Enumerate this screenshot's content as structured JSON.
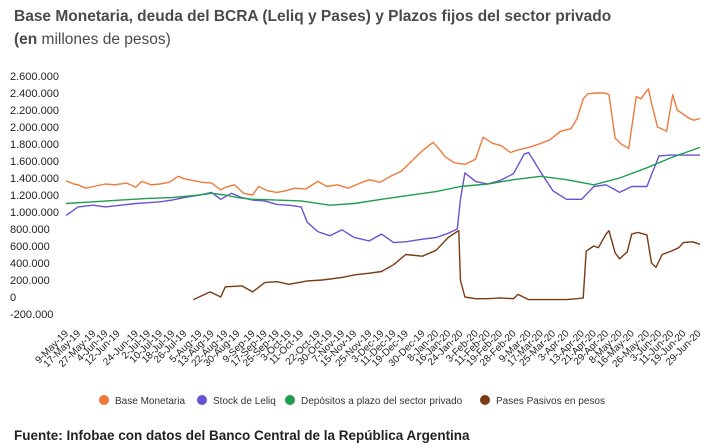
{
  "title": "Base Monetaria, deuda del BCRA (Leliq y Pases) y Plazos fijos del sector privado",
  "subtitle_prefix": "(en",
  "subtitle_rest": " millones de pesos)",
  "footer": "Fuente: Infobae con datos del Banco Central de la República Argentina",
  "chart_data": {
    "type": "line",
    "title": "Base Monetaria, deuda del BCRA (Leliq y Pases) y Plazos fijos del sector privado",
    "subtitle": "(en millones de pesos)",
    "xlabel": "",
    "ylabel": "",
    "ylim": [
      -200000,
      2600000
    ],
    "ytick_labels": [
      "2.600.000",
      "2.400.000",
      "2.200.000",
      "2.000.000",
      "1.800.000",
      "1.600.000",
      "1.400.000",
      "1.200.000",
      "1.000.000",
      "800.000",
      "600.000",
      "400.000",
      "200.000",
      "0",
      "-200.000"
    ],
    "ytick_values": [
      2600000,
      2400000,
      2200000,
      2000000,
      1800000,
      1600000,
      1400000,
      1200000,
      1000000,
      800000,
      600000,
      400000,
      200000,
      0,
      -200000
    ],
    "grid": false,
    "legend_position": "bottom",
    "x_start": "2019-05-09",
    "x_end": "2020-06-30",
    "xtick_labels": [
      "9-May-19",
      "17-May-19",
      "27-May-19",
      "4-Jun-19",
      "12-Jun-19",
      "24-Jun-19",
      "2-Jul-19",
      "10-Jul-19",
      "18-Jul-19",
      "26-Jul-19",
      "5-Aug-19",
      "13-Aug-19",
      "22-Aug-19",
      "30-Aug-19",
      "9-Sep-19",
      "17-Sep-19",
      "25-Sep-19",
      "3-Oct-19",
      "11-Oct-19",
      "22-Oct-19",
      "30-Oct-19",
      "7-Nov-19",
      "15-Nov-19",
      "25-Nov-19",
      "3-Dec-19",
      "11-Dec-19",
      "19-Dec-19",
      "30-Dec-19",
      "8-Jan-20",
      "16-Jan-20",
      "24-Jan-20",
      "3-Feb-20",
      "11-Feb-20",
      "19-Feb-20",
      "28-Feb-20",
      "9-Mar-20",
      "17-Mar-20",
      "25-Mar-20",
      "3-Apr-20",
      "13-Apr-20",
      "21-Apr-20",
      "29-Apr-20",
      "8-May-20",
      "16-May-20",
      "26-May-20",
      "3-Jun-20",
      "11-Jun-20",
      "19-Jun-20",
      "29-Jun-20"
    ],
    "xtick_dates": [
      "2019-05-09",
      "2019-05-17",
      "2019-05-27",
      "2019-06-04",
      "2019-06-12",
      "2019-06-24",
      "2019-07-02",
      "2019-07-10",
      "2019-07-18",
      "2019-07-26",
      "2019-08-05",
      "2019-08-13",
      "2019-08-22",
      "2019-08-30",
      "2019-09-09",
      "2019-09-17",
      "2019-09-25",
      "2019-10-03",
      "2019-10-11",
      "2019-10-22",
      "2019-10-30",
      "2019-11-07",
      "2019-11-15",
      "2019-11-25",
      "2019-12-03",
      "2019-12-11",
      "2019-12-19",
      "2019-12-30",
      "2020-01-08",
      "2020-01-16",
      "2020-01-24",
      "2020-02-03",
      "2020-02-11",
      "2020-02-19",
      "2020-02-28",
      "2020-03-09",
      "2020-03-17",
      "2020-03-25",
      "2020-04-03",
      "2020-04-13",
      "2020-04-21",
      "2020-04-29",
      "2020-05-08",
      "2020-05-16",
      "2020-05-26",
      "2020-06-03",
      "2020-06-11",
      "2020-06-19",
      "2020-06-29"
    ],
    "series": [
      {
        "name": "Base Monetaria",
        "color": "#f07a3c",
        "points": [
          [
            "2019-05-09",
            1370000
          ],
          [
            "2019-05-14",
            1330000
          ],
          [
            "2019-05-17",
            1320000
          ],
          [
            "2019-05-22",
            1280000
          ],
          [
            "2019-05-27",
            1300000
          ],
          [
            "2019-06-04",
            1330000
          ],
          [
            "2019-06-10",
            1320000
          ],
          [
            "2019-06-18",
            1340000
          ],
          [
            "2019-06-24",
            1290000
          ],
          [
            "2019-06-28",
            1360000
          ],
          [
            "2019-07-04",
            1320000
          ],
          [
            "2019-07-10",
            1330000
          ],
          [
            "2019-07-16",
            1350000
          ],
          [
            "2019-07-22",
            1420000
          ],
          [
            "2019-07-26",
            1390000
          ],
          [
            "2019-08-01",
            1370000
          ],
          [
            "2019-08-07",
            1350000
          ],
          [
            "2019-08-13",
            1340000
          ],
          [
            "2019-08-19",
            1260000
          ],
          [
            "2019-08-22",
            1290000
          ],
          [
            "2019-08-28",
            1320000
          ],
          [
            "2019-09-03",
            1220000
          ],
          [
            "2019-09-09",
            1200000
          ],
          [
            "2019-09-13",
            1300000
          ],
          [
            "2019-09-19",
            1250000
          ],
          [
            "2019-09-25",
            1230000
          ],
          [
            "2019-10-01",
            1250000
          ],
          [
            "2019-10-07",
            1280000
          ],
          [
            "2019-10-14",
            1270000
          ],
          [
            "2019-10-22",
            1360000
          ],
          [
            "2019-10-28",
            1300000
          ],
          [
            "2019-11-04",
            1320000
          ],
          [
            "2019-11-11",
            1280000
          ],
          [
            "2019-11-19",
            1340000
          ],
          [
            "2019-11-25",
            1380000
          ],
          [
            "2019-12-02",
            1350000
          ],
          [
            "2019-12-09",
            1420000
          ],
          [
            "2019-12-16",
            1480000
          ],
          [
            "2019-12-23",
            1600000
          ],
          [
            "2019-12-30",
            1720000
          ],
          [
            "2020-01-06",
            1820000
          ],
          [
            "2020-01-10",
            1740000
          ],
          [
            "2020-01-14",
            1650000
          ],
          [
            "2020-01-20",
            1580000
          ],
          [
            "2020-01-27",
            1560000
          ],
          [
            "2020-02-03",
            1620000
          ],
          [
            "2020-02-08",
            1880000
          ],
          [
            "2020-02-14",
            1810000
          ],
          [
            "2020-02-20",
            1780000
          ],
          [
            "2020-02-26",
            1700000
          ],
          [
            "2020-03-02",
            1730000
          ],
          [
            "2020-03-09",
            1760000
          ],
          [
            "2020-03-16",
            1800000
          ],
          [
            "2020-03-23",
            1850000
          ],
          [
            "2020-03-30",
            1950000
          ],
          [
            "2020-04-06",
            1980000
          ],
          [
            "2020-04-10",
            2100000
          ],
          [
            "2020-04-14",
            2330000
          ],
          [
            "2020-04-17",
            2390000
          ],
          [
            "2020-04-22",
            2400000
          ],
          [
            "2020-04-28",
            2400000
          ],
          [
            "2020-05-01",
            2380000
          ],
          [
            "2020-05-05",
            1870000
          ],
          [
            "2020-05-09",
            1800000
          ],
          [
            "2020-05-14",
            1750000
          ],
          [
            "2020-05-19",
            2360000
          ],
          [
            "2020-05-22",
            2330000
          ],
          [
            "2020-05-27",
            2450000
          ],
          [
            "2020-05-29",
            2280000
          ],
          [
            "2020-06-02",
            2000000
          ],
          [
            "2020-06-08",
            1950000
          ],
          [
            "2020-06-12",
            2380000
          ],
          [
            "2020-06-15",
            2200000
          ],
          [
            "2020-06-19",
            2150000
          ],
          [
            "2020-06-23",
            2100000
          ],
          [
            "2020-06-26",
            2080000
          ],
          [
            "2020-06-30",
            2100000
          ]
        ]
      },
      {
        "name": "Stock de Leliq",
        "color": "#6a52d4",
        "points": [
          [
            "2019-05-09",
            960000
          ],
          [
            "2019-05-17",
            1060000
          ],
          [
            "2019-05-27",
            1080000
          ],
          [
            "2019-06-04",
            1060000
          ],
          [
            "2019-06-14",
            1080000
          ],
          [
            "2019-06-24",
            1100000
          ],
          [
            "2019-07-02",
            1110000
          ],
          [
            "2019-07-10",
            1120000
          ],
          [
            "2019-07-18",
            1140000
          ],
          [
            "2019-07-26",
            1170000
          ],
          [
            "2019-08-05",
            1200000
          ],
          [
            "2019-08-13",
            1230000
          ],
          [
            "2019-08-19",
            1150000
          ],
          [
            "2019-08-26",
            1220000
          ],
          [
            "2019-09-02",
            1170000
          ],
          [
            "2019-09-09",
            1140000
          ],
          [
            "2019-09-17",
            1130000
          ],
          [
            "2019-09-25",
            1090000
          ],
          [
            "2019-10-03",
            1080000
          ],
          [
            "2019-10-11",
            1060000
          ],
          [
            "2019-10-15",
            880000
          ],
          [
            "2019-10-22",
            770000
          ],
          [
            "2019-10-30",
            720000
          ],
          [
            "2019-11-07",
            790000
          ],
          [
            "2019-11-15",
            700000
          ],
          [
            "2019-11-25",
            660000
          ],
          [
            "2019-12-03",
            740000
          ],
          [
            "2019-12-11",
            640000
          ],
          [
            "2019-12-19",
            650000
          ],
          [
            "2019-12-30",
            680000
          ],
          [
            "2020-01-08",
            700000
          ],
          [
            "2020-01-16",
            750000
          ],
          [
            "2020-01-22",
            800000
          ],
          [
            "2020-01-24",
            1150000
          ],
          [
            "2020-01-27",
            1460000
          ],
          [
            "2020-02-03",
            1360000
          ],
          [
            "2020-02-11",
            1330000
          ],
          [
            "2020-02-19",
            1370000
          ],
          [
            "2020-02-28",
            1450000
          ],
          [
            "2020-03-06",
            1680000
          ],
          [
            "2020-03-09",
            1700000
          ],
          [
            "2020-03-17",
            1470000
          ],
          [
            "2020-03-25",
            1250000
          ],
          [
            "2020-04-03",
            1150000
          ],
          [
            "2020-04-13",
            1150000
          ],
          [
            "2020-04-21",
            1300000
          ],
          [
            "2020-04-29",
            1320000
          ],
          [
            "2020-05-08",
            1230000
          ],
          [
            "2020-05-16",
            1300000
          ],
          [
            "2020-05-26",
            1300000
          ],
          [
            "2020-06-03",
            1660000
          ],
          [
            "2020-06-11",
            1670000
          ],
          [
            "2020-06-19",
            1670000
          ],
          [
            "2020-06-30",
            1670000
          ]
        ]
      },
      {
        "name": "Depósitos a plazo del sector privado",
        "color": "#1e9e4e",
        "points": [
          [
            "2019-05-09",
            1100000
          ],
          [
            "2019-05-27",
            1120000
          ],
          [
            "2019-06-14",
            1140000
          ],
          [
            "2019-07-02",
            1160000
          ],
          [
            "2019-07-18",
            1170000
          ],
          [
            "2019-08-05",
            1200000
          ],
          [
            "2019-08-13",
            1220000
          ],
          [
            "2019-08-22",
            1200000
          ],
          [
            "2019-08-30",
            1170000
          ],
          [
            "2019-09-09",
            1150000
          ],
          [
            "2019-09-25",
            1140000
          ],
          [
            "2019-10-11",
            1130000
          ],
          [
            "2019-10-30",
            1080000
          ],
          [
            "2019-11-15",
            1100000
          ],
          [
            "2019-12-03",
            1150000
          ],
          [
            "2019-12-19",
            1190000
          ],
          [
            "2020-01-08",
            1240000
          ],
          [
            "2020-01-24",
            1300000
          ],
          [
            "2020-02-11",
            1330000
          ],
          [
            "2020-02-28",
            1380000
          ],
          [
            "2020-03-17",
            1420000
          ],
          [
            "2020-04-03",
            1380000
          ],
          [
            "2020-04-21",
            1320000
          ],
          [
            "2020-05-08",
            1400000
          ],
          [
            "2020-05-26",
            1520000
          ],
          [
            "2020-06-11",
            1640000
          ],
          [
            "2020-06-30",
            1760000
          ]
        ]
      },
      {
        "name": "Pases Pasivos en pesos",
        "color": "#7a3a12",
        "points": [
          [
            "2019-08-01",
            -30000
          ],
          [
            "2019-08-06",
            10000
          ],
          [
            "2019-08-12",
            60000
          ],
          [
            "2019-08-19",
            0
          ],
          [
            "2019-08-22",
            120000
          ],
          [
            "2019-09-02",
            130000
          ],
          [
            "2019-09-09",
            60000
          ],
          [
            "2019-09-17",
            170000
          ],
          [
            "2019-09-25",
            180000
          ],
          [
            "2019-10-03",
            150000
          ],
          [
            "2019-10-15",
            190000
          ],
          [
            "2019-10-25",
            200000
          ],
          [
            "2019-11-07",
            230000
          ],
          [
            "2019-11-15",
            260000
          ],
          [
            "2019-11-25",
            280000
          ],
          [
            "2019-12-03",
            300000
          ],
          [
            "2019-12-11",
            380000
          ],
          [
            "2019-12-19",
            500000
          ],
          [
            "2019-12-30",
            480000
          ],
          [
            "2020-01-08",
            550000
          ],
          [
            "2020-01-16",
            700000
          ],
          [
            "2020-01-21",
            760000
          ],
          [
            "2020-01-23",
            780000
          ],
          [
            "2020-01-24",
            200000
          ],
          [
            "2020-01-27",
            0
          ],
          [
            "2020-02-03",
            -20000
          ],
          [
            "2020-02-11",
            -20000
          ],
          [
            "2020-02-19",
            -10000
          ],
          [
            "2020-02-28",
            -20000
          ],
          [
            "2020-03-02",
            30000
          ],
          [
            "2020-03-09",
            -30000
          ],
          [
            "2020-03-17",
            -30000
          ],
          [
            "2020-03-25",
            -30000
          ],
          [
            "2020-04-03",
            -30000
          ],
          [
            "2020-04-10",
            -20000
          ],
          [
            "2020-04-14",
            -10000
          ],
          [
            "2020-04-16",
            540000
          ],
          [
            "2020-04-21",
            600000
          ],
          [
            "2020-04-24",
            580000
          ],
          [
            "2020-04-29",
            740000
          ],
          [
            "2020-05-01",
            780000
          ],
          [
            "2020-05-05",
            520000
          ],
          [
            "2020-05-08",
            450000
          ],
          [
            "2020-05-13",
            530000
          ],
          [
            "2020-05-16",
            740000
          ],
          [
            "2020-05-20",
            760000
          ],
          [
            "2020-05-26",
            730000
          ],
          [
            "2020-05-29",
            400000
          ],
          [
            "2020-06-01",
            350000
          ],
          [
            "2020-06-05",
            500000
          ],
          [
            "2020-06-11",
            540000
          ],
          [
            "2020-06-16",
            580000
          ],
          [
            "2020-06-19",
            640000
          ],
          [
            "2020-06-25",
            650000
          ],
          [
            "2020-06-30",
            620000
          ]
        ]
      }
    ]
  },
  "legend": [
    {
      "label": "Base Monetaria",
      "color": "#f07a3c"
    },
    {
      "label": "Stock de Leliq",
      "color": "#6a52d4"
    },
    {
      "label": "Depósitos a plazo del sector privado",
      "color": "#1e9e4e"
    },
    {
      "label": "Pases Pasivos en pesos",
      "color": "#7a3a12"
    }
  ]
}
